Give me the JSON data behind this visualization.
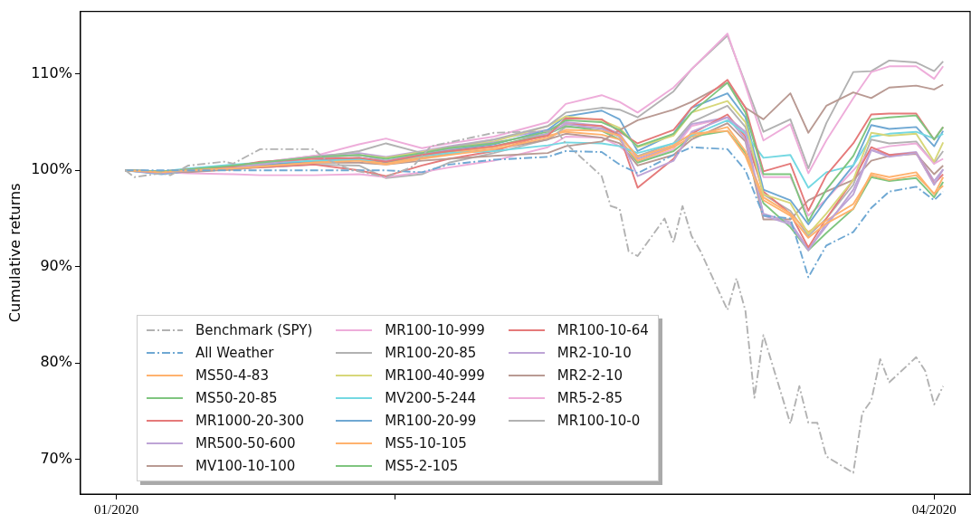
{
  "chart_data": {
    "type": "line",
    "ylabel": "Cumulative returns",
    "x": [
      "2020-01-02",
      "2020-01-06",
      "2020-01-09",
      "2020-01-14",
      "2020-01-17",
      "2020-01-23",
      "2020-01-28",
      "2020-01-31",
      "2020-02-04",
      "2020-02-07",
      "2020-02-12",
      "2020-02-18",
      "2020-02-20",
      "2020-02-24",
      "2020-02-26",
      "2020-02-28",
      "2020-03-03",
      "2020-03-05",
      "2020-03-09",
      "2020-03-11",
      "2020-03-13",
      "2020-03-16",
      "2020-03-18",
      "2020-03-20",
      "2020-03-23",
      "2020-03-25",
      "2020-03-27",
      "2020-03-30",
      "2020-04-01",
      "2020-04-02"
    ],
    "xlim": [
      "2019-12-28",
      "2020-04-05"
    ],
    "xticks": [
      {
        "value": "2020-01-01",
        "label": "01/2020"
      },
      {
        "value": "2020-02-01",
        "label": null
      },
      {
        "value": "2020-04-01",
        "label": "04/2020"
      }
    ],
    "ylim": [
      66.4,
      116.5
    ],
    "yticks": [
      {
        "value": 70,
        "label": "70%"
      },
      {
        "value": 80,
        "label": "80%"
      },
      {
        "value": 90,
        "label": "90%"
      },
      {
        "value": 100,
        "label": "100%"
      },
      {
        "value": 110,
        "label": "110%"
      }
    ],
    "grid": false,
    "legend": "bottom left",
    "marker": "none",
    "series": [
      {
        "name": "Benchmark (SPY)",
        "color": "#b2b2b2",
        "line_style": "dashdot",
        "x": [
          "2020-01-02",
          "2020-01-03",
          "2020-01-06",
          "2020-01-07",
          "2020-01-09",
          "2020-01-13",
          "2020-01-14",
          "2020-01-17",
          "2020-01-23",
          "2020-01-24",
          "2020-01-27",
          "2020-01-31",
          "2020-02-03",
          "2020-02-05",
          "2020-02-12",
          "2020-02-19",
          "2020-02-20",
          "2020-02-24",
          "2020-02-25",
          "2020-02-26",
          "2020-02-27",
          "2020-02-28",
          "2020-03-02",
          "2020-03-03",
          "2020-03-04",
          "2020-03-05",
          "2020-03-06",
          "2020-03-09",
          "2020-03-10",
          "2020-03-11",
          "2020-03-12",
          "2020-03-13",
          "2020-03-16",
          "2020-03-17",
          "2020-03-18",
          "2020-03-19",
          "2020-03-20",
          "2020-03-23",
          "2020-03-24",
          "2020-03-25",
          "2020-03-26",
          "2020-03-27",
          "2020-03-30",
          "2020-03-31",
          "2020-04-01",
          "2020-04-02"
        ],
        "values": [
          100.0,
          99.3,
          99.7,
          99.5,
          100.5,
          100.9,
          100.7,
          102.2,
          102.2,
          101.3,
          100.1,
          99.3,
          100.4,
          102.5,
          103.9,
          104.1,
          102.8,
          99.4,
          96.3,
          96.0,
          91.6,
          91.1,
          95.0,
          92.5,
          96.3,
          93.2,
          91.6,
          85.5,
          88.8,
          85.4,
          76.4,
          82.9,
          73.7,
          77.6,
          73.8,
          73.8,
          70.3,
          68.6,
          74.8,
          76.1,
          80.4,
          78.0,
          80.6,
          79.2,
          75.7,
          77.6
        ]
      },
      {
        "name": "All Weather",
        "color": "#6fa8d3",
        "line_style": "dashdot",
        "values": [
          100,
          100,
          100,
          100,
          100,
          100,
          100,
          100,
          99.8,
          100.6,
          101.1,
          101.4,
          102.0,
          101.9,
          100.6,
          99.7,
          101.6,
          102.4,
          102.2,
          100.0,
          95.3,
          95.0,
          88.9,
          92.2,
          93.6,
          96.1,
          97.8,
          98.3,
          96.9,
          97.8
        ]
      },
      {
        "name": "MS50-4-83",
        "color": "#ffb26e",
        "values": [
          100,
          99.8,
          100.0,
          100.2,
          100.4,
          100.8,
          101.0,
          100.6,
          101.2,
          101.6,
          102.2,
          103.4,
          104.2,
          104.1,
          103.6,
          101.4,
          102.6,
          103.8,
          104.1,
          101.5,
          96.9,
          95.3,
          93.0,
          94.5,
          96.0,
          99.7,
          99.3,
          99.8,
          97.5,
          99.3
        ]
      },
      {
        "name": "MS50-20-85",
        "color": "#7fc57f",
        "values": [
          100,
          99.9,
          100.1,
          100.5,
          100.8,
          101.4,
          101.6,
          101.2,
          101.8,
          102.3,
          102.8,
          104.0,
          105.2,
          105.0,
          104.2,
          102.5,
          103.8,
          106.0,
          109.1,
          106.0,
          99.6,
          99.6,
          94.7,
          98.0,
          101.5,
          105.3,
          105.5,
          105.7,
          103.2,
          104.5
        ]
      },
      {
        "name": "MR1000-20-300",
        "color": "#e57a7a",
        "values": [
          100,
          99.8,
          100.1,
          100.4,
          100.9,
          101.2,
          101.3,
          100.9,
          101.6,
          102.0,
          102.5,
          103.6,
          105.4,
          105.3,
          104.0,
          102.8,
          104.2,
          106.5,
          109.4,
          106.5,
          99.9,
          100.7,
          95.8,
          99.5,
          102.8,
          105.8,
          105.9,
          105.9,
          103.2,
          104.5
        ]
      },
      {
        "name": "MR500-50-600",
        "color": "#bea4d6",
        "values": [
          100,
          99.7,
          100.0,
          100.3,
          100.6,
          101.3,
          101.6,
          101.0,
          101.8,
          102.2,
          102.9,
          103.8,
          104.8,
          104.3,
          103.5,
          99.4,
          101.0,
          104.0,
          105.5,
          104.0,
          95.3,
          94.4,
          91.7,
          94.5,
          97.5,
          102.1,
          101.4,
          101.8,
          98.5,
          100.1
        ]
      },
      {
        "name": "MV100-10-100",
        "color": "#b99a93",
        "values": [
          100,
          99.9,
          99.8,
          100.1,
          100.4,
          100.8,
          100.8,
          100.6,
          101.0,
          101.2,
          101.5,
          101.8,
          102.5,
          103.0,
          104.2,
          105.2,
          106.3,
          107.1,
          109.1,
          106.5,
          105.3,
          108.0,
          103.9,
          106.7,
          108.1,
          107.5,
          108.6,
          108.8,
          108.4,
          108.9
        ]
      },
      {
        "name": "MR100-10-999",
        "color": "#eeadda",
        "values": [
          100,
          99.9,
          100.1,
          100.4,
          100.8,
          101.5,
          102.7,
          103.3,
          102.3,
          102.8,
          103.5,
          105.0,
          106.9,
          107.8,
          107.1,
          106.0,
          108.6,
          110.5,
          114.2,
          108.8,
          103.1,
          104.8,
          99.7,
          103.1,
          107.5,
          110.2,
          110.8,
          110.8,
          109.5,
          110.8
        ]
      },
      {
        "name": "MR100-20-85",
        "color": "#b2b2b2",
        "values": [
          100,
          99.9,
          100.1,
          100.3,
          100.7,
          101.3,
          102.0,
          102.8,
          101.8,
          102.4,
          103.2,
          104.6,
          106.0,
          106.5,
          106.3,
          105.5,
          108.2,
          110.5,
          114.0,
          109.0,
          104.0,
          105.3,
          100.2,
          104.9,
          110.2,
          110.3,
          111.4,
          111.2,
          110.3,
          111.3
        ]
      },
      {
        "name": "MR100-40-999",
        "color": "#d7d77a",
        "values": [
          100,
          99.9,
          100.0,
          100.3,
          100.7,
          101.3,
          101.6,
          101.3,
          101.9,
          102.4,
          103.0,
          104.6,
          105.6,
          105.2,
          104.4,
          102.4,
          103.6,
          106.0,
          107.2,
          105.0,
          97.5,
          96.6,
          93.4,
          95.5,
          99.0,
          103.9,
          103.6,
          103.8,
          100.9,
          102.9
        ]
      },
      {
        "name": "MV200-5-244",
        "color": "#74d8e2",
        "values": [
          100,
          99.9,
          100.2,
          100.6,
          100.8,
          101.0,
          101.1,
          101.0,
          101.5,
          101.8,
          102.0,
          102.6,
          102.9,
          102.8,
          102.5,
          101.8,
          102.8,
          103.6,
          105.2,
          103.8,
          101.3,
          101.6,
          98.2,
          99.8,
          100.5,
          103.5,
          103.8,
          104.0,
          103.3,
          103.8
        ]
      },
      {
        "name": "MR100-20-99",
        "color": "#6fa8d3",
        "values": [
          100,
          99.6,
          99.9,
          100.2,
          100.5,
          101.0,
          101.3,
          100.9,
          101.7,
          102.1,
          102.7,
          104.2,
          105.6,
          106.2,
          105.3,
          102.0,
          103.8,
          106.5,
          108.0,
          105.5,
          98.0,
          96.9,
          94.4,
          97.0,
          100.5,
          104.7,
          104.3,
          104.5,
          102.5,
          104.1
        ]
      },
      {
        "name": "MS5-10-105",
        "color": "#ffb26e",
        "values": [
          100,
          99.8,
          99.9,
          100.1,
          100.4,
          100.9,
          101.1,
          100.7,
          101.4,
          101.8,
          102.4,
          103.6,
          104.0,
          103.7,
          103.2,
          101.0,
          102.4,
          103.5,
          104.5,
          102.0,
          97.2,
          95.5,
          93.6,
          94.8,
          96.5,
          99.5,
          99.0,
          99.5,
          97.6,
          98.4
        ]
      },
      {
        "name": "MS5-2-105",
        "color": "#7fc57f",
        "values": [
          100,
          99.8,
          100.0,
          100.2,
          100.5,
          101.0,
          101.2,
          100.9,
          101.5,
          101.9,
          102.5,
          103.8,
          104.6,
          104.1,
          103.2,
          100.8,
          102.0,
          103.5,
          104.1,
          101.8,
          96.6,
          94.1,
          91.7,
          93.5,
          96.0,
          99.3,
          98.9,
          99.2,
          97.2,
          98.8
        ]
      },
      {
        "name": "MR100-10-64",
        "color": "#e57a7a",
        "values": [
          100,
          99.7,
          99.9,
          100.2,
          100.3,
          100.6,
          100.0,
          99.4,
          100.5,
          101.2,
          102.0,
          103.8,
          104.8,
          104.6,
          103.6,
          98.2,
          101.2,
          103.8,
          105.8,
          103.5,
          97.8,
          95.5,
          92.0,
          95.0,
          99.0,
          102.4,
          101.6,
          101.8,
          98.6,
          99.6
        ]
      },
      {
        "name": "MR2-10-10",
        "color": "#bea4d6",
        "values": [
          100,
          99.9,
          100.1,
          100.4,
          100.8,
          101.5,
          101.8,
          101.4,
          102.0,
          102.5,
          103.2,
          104.2,
          105.0,
          104.6,
          103.8,
          101.2,
          102.5,
          104.8,
          105.5,
          103.2,
          95.5,
          94.6,
          91.8,
          94.2,
          98.0,
          102.1,
          101.6,
          101.9,
          98.9,
          100.1
        ]
      },
      {
        "name": "MR2-2-10",
        "color": "#b99a93",
        "values": [
          100,
          99.8,
          99.9,
          100.1,
          100.4,
          100.9,
          101.1,
          100.8,
          101.3,
          101.7,
          102.2,
          103.2,
          103.8,
          103.4,
          102.8,
          100.5,
          101.6,
          103.2,
          104.9,
          103.0,
          94.9,
          94.9,
          96.9,
          97.8,
          99.0,
          101.0,
          101.5,
          101.7,
          99.6,
          100.5
        ]
      },
      {
        "name": "MR5-2-85",
        "color": "#eeadda",
        "values": [
          100,
          99.8,
          99.7,
          99.6,
          99.5,
          99.5,
          99.6,
          99.3,
          99.8,
          100.3,
          101.0,
          102.4,
          103.5,
          103.4,
          102.5,
          100.9,
          102.2,
          104.6,
          105.5,
          104.0,
          99.3,
          99.3,
          95.3,
          97.0,
          100.0,
          102.1,
          102.5,
          102.8,
          100.7,
          101.2
        ]
      },
      {
        "name": "MR100-10-0",
        "color": "#b2b2b2",
        "values": [
          100,
          99.9,
          100.0,
          100.2,
          100.3,
          100.6,
          100.5,
          99.2,
          99.6,
          100.8,
          101.8,
          103.2,
          104.5,
          104.4,
          103.5,
          101.5,
          102.8,
          105.0,
          106.7,
          104.5,
          97.5,
          95.8,
          93.2,
          95.0,
          98.5,
          103.2,
          102.8,
          103.0,
          100.7,
          102.0
        ]
      }
    ]
  }
}
